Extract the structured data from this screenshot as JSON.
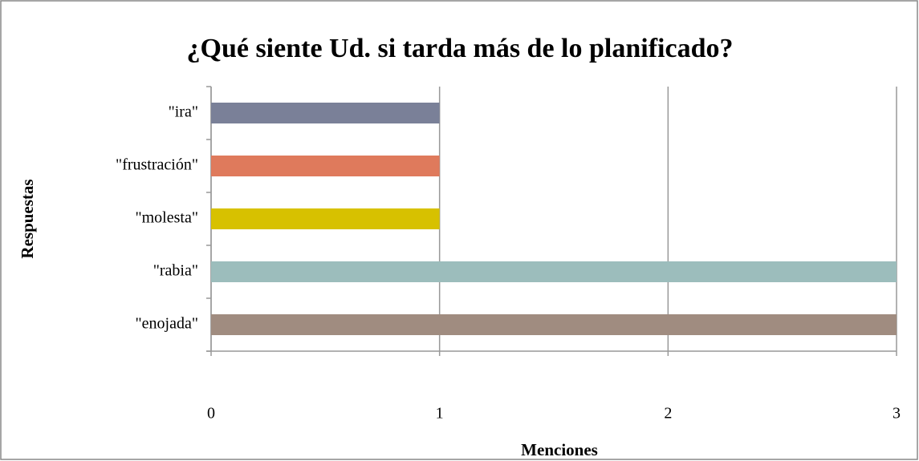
{
  "chart_data": {
    "type": "barh",
    "title": "¿Qué siente Ud. si tarda más de lo planificado?",
    "xlabel": "Menciones",
    "ylabel": "Respuestas",
    "categories": [
      "\"ira\"",
      "\"frustración\"",
      "\"molesta\"",
      "\"rabia\"",
      "\"enojada\""
    ],
    "values": [
      1,
      1,
      1,
      3,
      3
    ],
    "colors": [
      "#7a8098",
      "#df7a5c",
      "#d7c100",
      "#9cbdbc",
      "#a08c80"
    ],
    "xlim": [
      0,
      3
    ],
    "xticks": [
      0,
      1,
      2,
      3
    ],
    "grid": true
  }
}
